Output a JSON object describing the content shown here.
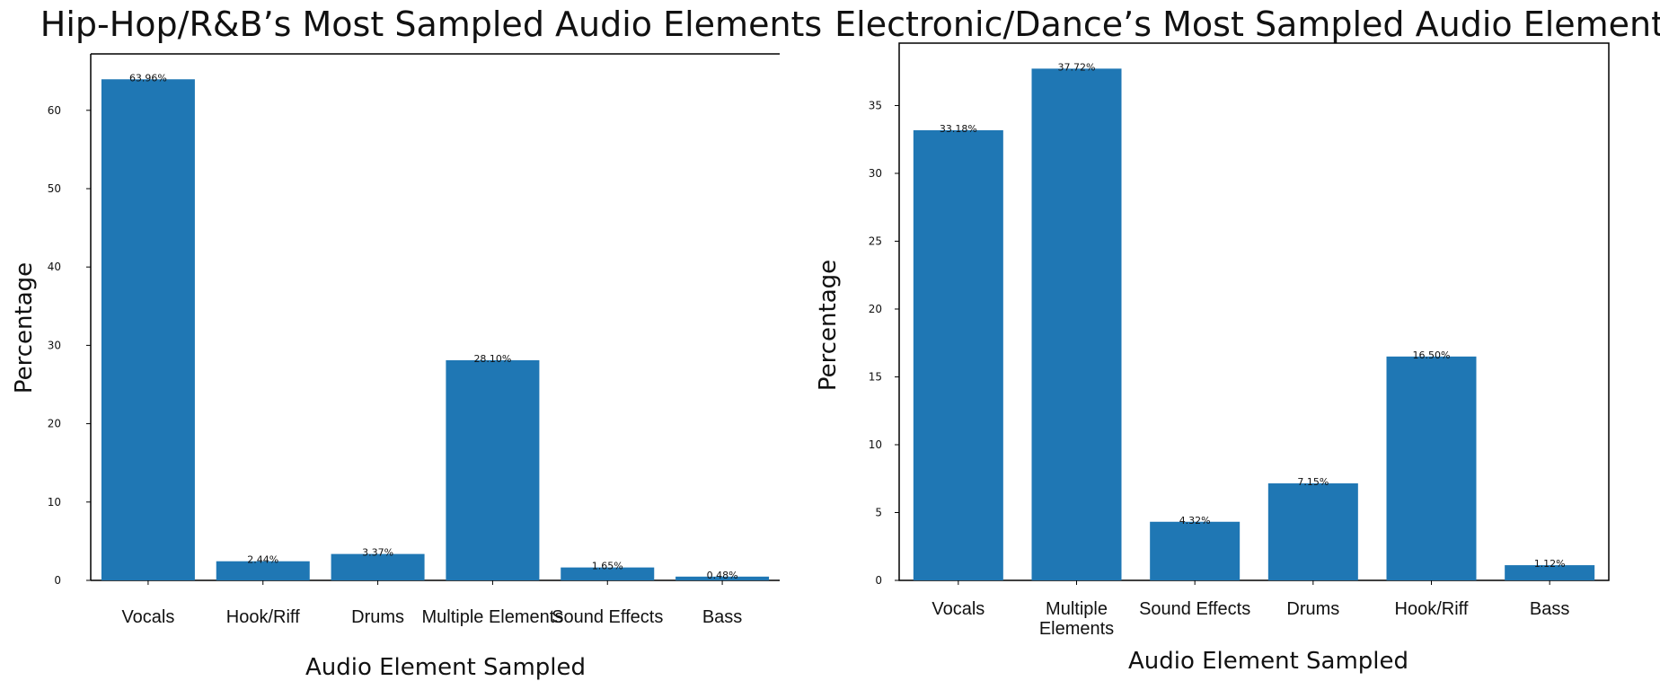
{
  "chart_data": [
    {
      "type": "bar",
      "title": "Hip-Hop/R&B’s Most Sampled Audio Elements",
      "xlabel": "Audio Element Sampled",
      "ylabel": "Percentage",
      "categories": [
        "Vocals",
        "Hook/Riff",
        "Drums",
        "Multiple Elements",
        "Sound Effects",
        "Bass"
      ],
      "values": [
        63.96,
        2.44,
        3.37,
        28.1,
        1.65,
        0.48
      ],
      "value_labels": [
        "63.96%",
        "2.44%",
        "3.37%",
        "28.10%",
        "1.65%",
        "0.48%"
      ],
      "yticks": [
        0,
        10,
        20,
        30,
        40,
        50,
        60
      ],
      "ylim": [
        0,
        67.2
      ],
      "color": "#1f77b4",
      "grid": false
    },
    {
      "type": "bar",
      "title": "Electronic/Dance’s Most Sampled Audio Elements",
      "xlabel": "Audio Element Sampled",
      "ylabel": "Percentage",
      "categories": [
        "Vocals",
        "Multiple Elements",
        "Sound Effects",
        "Drums",
        "Hook/Riff",
        "Bass"
      ],
      "values": [
        33.18,
        37.72,
        4.32,
        7.15,
        16.5,
        1.12
      ],
      "value_labels": [
        "33.18%",
        "37.72%",
        "4.32%",
        "7.15%",
        "16.50%",
        "1.12%"
      ],
      "yticks": [
        0,
        5,
        10,
        15,
        20,
        25,
        30,
        35
      ],
      "ylim": [
        0,
        39.6
      ],
      "color": "#1f77b4",
      "grid": false
    }
  ]
}
